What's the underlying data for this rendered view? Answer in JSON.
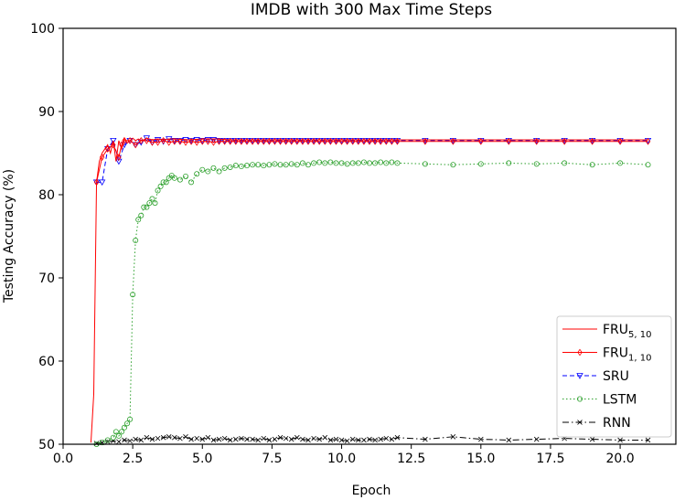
{
  "chart_data": {
    "type": "line",
    "title": "IMDB with 300 Max Time Steps",
    "xlabel": "Epoch",
    "ylabel": "Testing Accuracy (%)",
    "xlim": [
      0,
      22
    ],
    "ylim": [
      50,
      100
    ],
    "xticks": [
      "0.0",
      "2.5",
      "5.0",
      "7.5",
      "10.0",
      "12.5",
      "15.0",
      "17.5",
      "20.0"
    ],
    "yticks": [
      "50",
      "60",
      "70",
      "80",
      "90",
      "100"
    ],
    "xtick_values": [
      0,
      2.5,
      5,
      7.5,
      10,
      12.5,
      15,
      17.5,
      20
    ],
    "ytick_values": [
      50,
      60,
      70,
      80,
      90,
      100
    ],
    "grid": false,
    "legend_position": "bottom-right",
    "series": [
      {
        "name": "FRU5,10",
        "name_base": "FRU",
        "name_sub": "5, 10",
        "color": "#ff0000",
        "dash": "solid",
        "marker": "none",
        "x": [
          1.0,
          1.1,
          1.2,
          1.3,
          1.4,
          1.5,
          1.6,
          1.7,
          1.8,
          1.9,
          2.0,
          2.1,
          2.2,
          2.3,
          2.4,
          2.5,
          2.6,
          2.7,
          2.8,
          2.9,
          3.0,
          3.2,
          3.4,
          3.6,
          3.8,
          4.0,
          4.5,
          5.0,
          5.5,
          6.0,
          7.0,
          8.0,
          9.0,
          10.0,
          11.0,
          12.0,
          14.0,
          16.0,
          18.0,
          20.0,
          21.0
        ],
        "y": [
          50.2,
          56.0,
          81.5,
          84.0,
          85.0,
          85.5,
          86.0,
          85.0,
          86.5,
          84.0,
          86.5,
          85.5,
          86.8,
          86.2,
          86.5,
          86.8,
          86.5,
          86.7,
          86.5,
          86.6,
          86.8,
          86.6,
          86.7,
          86.6,
          86.7,
          86.7,
          86.6,
          86.7,
          86.7,
          86.6,
          86.6,
          86.6,
          86.6,
          86.6,
          86.6,
          86.6,
          86.6,
          86.6,
          86.6,
          86.6,
          86.6
        ]
      },
      {
        "name": "FRU1,10",
        "name_base": "FRU",
        "name_sub": "1, 10",
        "color": "#ff0000",
        "dash": "solid",
        "marker": "diamond",
        "x": [
          1.2,
          1.4,
          1.6,
          1.8,
          2.0,
          2.1,
          2.2,
          2.4,
          2.6,
          2.8,
          3.0,
          3.2,
          3.4,
          3.6,
          3.8,
          4.0,
          4.2,
          4.4,
          4.6,
          4.8,
          5.0,
          5.2,
          5.4,
          5.6,
          5.8,
          6.0,
          6.2,
          6.4,
          6.6,
          6.8,
          7.0,
          7.2,
          7.4,
          7.6,
          7.8,
          8.0,
          8.2,
          8.4,
          8.6,
          8.8,
          9.0,
          9.2,
          9.4,
          9.6,
          9.8,
          10.0,
          10.2,
          10.4,
          10.6,
          10.8,
          11.0,
          11.2,
          11.4,
          11.6,
          11.8,
          12.0,
          13.0,
          14.0,
          15.0,
          16.0,
          17.0,
          18.0,
          19.0,
          20.0,
          21.0
        ],
        "y": [
          81.5,
          84.5,
          85.5,
          86.0,
          84.5,
          86.0,
          86.5,
          86.5,
          86.0,
          86.5,
          86.5,
          86.3,
          86.3,
          86.5,
          86.3,
          86.4,
          86.4,
          86.3,
          86.4,
          86.3,
          86.4,
          86.4,
          86.3,
          86.4,
          86.4,
          86.4,
          86.4,
          86.4,
          86.4,
          86.4,
          86.4,
          86.4,
          86.4,
          86.4,
          86.4,
          86.4,
          86.4,
          86.4,
          86.4,
          86.4,
          86.4,
          86.4,
          86.4,
          86.4,
          86.4,
          86.4,
          86.4,
          86.4,
          86.4,
          86.4,
          86.4,
          86.4,
          86.4,
          86.4,
          86.4,
          86.4,
          86.4,
          86.4,
          86.4,
          86.4,
          86.4,
          86.4,
          86.4,
          86.4,
          86.4
        ]
      },
      {
        "name": "SRU",
        "name_base": "SRU",
        "name_sub": "",
        "color": "#0000ff",
        "dash": "dashed",
        "marker": "triangle-down",
        "x": [
          1.2,
          1.4,
          1.6,
          1.8,
          2.0,
          2.2,
          2.4,
          2.6,
          2.8,
          3.0,
          3.2,
          3.4,
          3.6,
          3.8,
          4.0,
          4.2,
          4.4,
          4.6,
          4.8,
          5.0,
          5.2,
          5.4,
          5.6,
          5.8,
          6.0,
          6.2,
          6.4,
          6.6,
          6.8,
          7.0,
          7.2,
          7.4,
          7.6,
          7.8,
          8.0,
          8.2,
          8.4,
          8.6,
          8.8,
          9.0,
          9.2,
          9.4,
          9.6,
          9.8,
          10.0,
          10.2,
          10.4,
          10.6,
          10.8,
          11.0,
          11.2,
          11.4,
          11.6,
          11.8,
          12.0,
          13.0,
          14.0,
          15.0,
          16.0,
          17.0,
          18.0,
          19.0,
          20.0,
          21.0
        ],
        "y": [
          81.5,
          81.5,
          85.5,
          86.5,
          84.0,
          86.0,
          86.5,
          86.0,
          86.3,
          86.8,
          86.3,
          86.6,
          86.4,
          86.7,
          86.5,
          86.5,
          86.6,
          86.5,
          86.6,
          86.5,
          86.6,
          86.6,
          86.5,
          86.5,
          86.5,
          86.5,
          86.5,
          86.5,
          86.5,
          86.5,
          86.5,
          86.5,
          86.5,
          86.5,
          86.5,
          86.5,
          86.5,
          86.5,
          86.5,
          86.5,
          86.5,
          86.5,
          86.5,
          86.5,
          86.5,
          86.5,
          86.5,
          86.5,
          86.5,
          86.5,
          86.5,
          86.5,
          86.5,
          86.5,
          86.5,
          86.5,
          86.5,
          86.5,
          86.5,
          86.5,
          86.5,
          86.5,
          86.5,
          86.5
        ]
      },
      {
        "name": "LSTM",
        "name_base": "LSTM",
        "name_sub": "",
        "color": "#2ca02c",
        "dash": "dotted",
        "marker": "circle",
        "x": [
          1.2,
          1.4,
          1.6,
          1.8,
          1.9,
          2.0,
          2.1,
          2.2,
          2.3,
          2.4,
          2.5,
          2.6,
          2.7,
          2.8,
          2.9,
          3.0,
          3.1,
          3.2,
          3.3,
          3.4,
          3.5,
          3.6,
          3.7,
          3.8,
          3.9,
          4.0,
          4.2,
          4.4,
          4.6,
          4.8,
          5.0,
          5.2,
          5.4,
          5.6,
          5.8,
          6.0,
          6.2,
          6.4,
          6.6,
          6.8,
          7.0,
          7.2,
          7.4,
          7.6,
          7.8,
          8.0,
          8.2,
          8.4,
          8.6,
          8.8,
          9.0,
          9.2,
          9.4,
          9.6,
          9.8,
          10.0,
          10.2,
          10.4,
          10.6,
          10.8,
          11.0,
          11.2,
          11.4,
          11.6,
          11.8,
          12.0,
          13.0,
          14.0,
          15.0,
          16.0,
          17.0,
          18.0,
          19.0,
          20.0,
          21.0
        ],
        "y": [
          50.0,
          50.2,
          50.5,
          50.8,
          51.5,
          51.0,
          51.5,
          52.0,
          52.5,
          53.0,
          68.0,
          74.5,
          77.0,
          77.5,
          78.5,
          78.5,
          79.0,
          79.5,
          79.0,
          80.5,
          81.0,
          81.5,
          81.5,
          82.0,
          82.3,
          82.0,
          81.8,
          82.2,
          81.5,
          82.5,
          83.0,
          82.8,
          83.2,
          82.8,
          83.2,
          83.3,
          83.5,
          83.4,
          83.5,
          83.6,
          83.6,
          83.5,
          83.6,
          83.7,
          83.6,
          83.6,
          83.7,
          83.6,
          83.8,
          83.6,
          83.8,
          83.9,
          83.8,
          83.9,
          83.8,
          83.8,
          83.7,
          83.8,
          83.8,
          83.9,
          83.8,
          83.8,
          83.9,
          83.8,
          83.9,
          83.8,
          83.7,
          83.6,
          83.7,
          83.8,
          83.7,
          83.8,
          83.6,
          83.8,
          83.6
        ]
      },
      {
        "name": "RNN",
        "name_base": "RNN",
        "name_sub": "",
        "color": "#000000",
        "dash": "dashdot",
        "marker": "x",
        "x": [
          1.2,
          1.4,
          1.6,
          1.8,
          2.0,
          2.2,
          2.4,
          2.6,
          2.8,
          3.0,
          3.2,
          3.4,
          3.6,
          3.8,
          4.0,
          4.2,
          4.4,
          4.6,
          4.8,
          5.0,
          5.2,
          5.4,
          5.6,
          5.8,
          6.0,
          6.2,
          6.4,
          6.6,
          6.8,
          7.0,
          7.2,
          7.4,
          7.6,
          7.8,
          8.0,
          8.2,
          8.4,
          8.6,
          8.8,
          9.0,
          9.2,
          9.4,
          9.6,
          9.8,
          10.0,
          10.2,
          10.4,
          10.6,
          10.8,
          11.0,
          11.2,
          11.4,
          11.6,
          11.8,
          12.0,
          13.0,
          14.0,
          15.0,
          16.0,
          17.0,
          18.0,
          19.0,
          20.0,
          21.0
        ],
        "y": [
          50.1,
          50.2,
          50.3,
          50.4,
          50.3,
          50.5,
          50.4,
          50.6,
          50.5,
          50.8,
          50.6,
          50.7,
          50.8,
          50.9,
          50.8,
          50.7,
          50.9,
          50.6,
          50.7,
          50.6,
          50.8,
          50.5,
          50.6,
          50.7,
          50.5,
          50.6,
          50.7,
          50.6,
          50.6,
          50.5,
          50.7,
          50.5,
          50.6,
          50.8,
          50.7,
          50.6,
          50.8,
          50.6,
          50.5,
          50.7,
          50.6,
          50.8,
          50.5,
          50.6,
          50.5,
          50.4,
          50.6,
          50.5,
          50.5,
          50.6,
          50.5,
          50.6,
          50.7,
          50.6,
          50.8,
          50.6,
          50.9,
          50.6,
          50.5,
          50.6,
          50.7,
          50.6,
          50.5,
          50.5
        ]
      }
    ]
  }
}
